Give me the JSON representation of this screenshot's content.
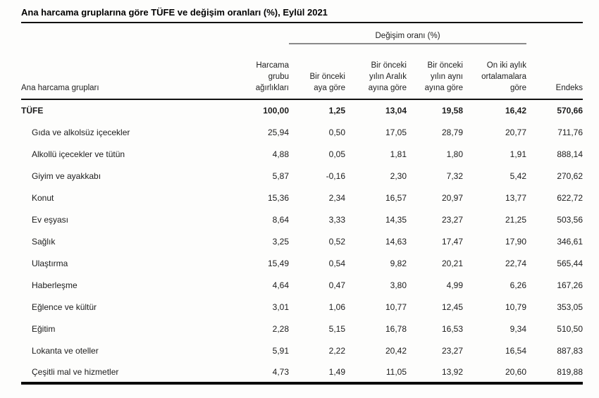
{
  "title": "Ana harcama gruplarına göre TÜFE ve değişim oranları (%), Eylül 2021",
  "table": {
    "span_header": "Değişim oranı (%)",
    "columns": {
      "group": "Ana harcama grupları",
      "weights": "Harcama\ngrubu\nağırlıkları",
      "prev_month": "Bir önceki\naya göre",
      "prev_december": "Bir önceki\nyılın Aralık\nayına göre",
      "prev_year_same_month": "Bir önceki\nyılın aynı\nayına göre",
      "twelve_month_avg": "On iki aylık\nortalamalara\ngöre",
      "index": "Endeks"
    },
    "rows": [
      {
        "label": "TÜFE",
        "values": [
          "100,00",
          "1,25",
          "13,04",
          "19,58",
          "16,42",
          "570,66"
        ]
      },
      {
        "label": "Gıda ve alkolsüz içecekler",
        "values": [
          "25,94",
          "0,50",
          "17,05",
          "28,79",
          "20,77",
          "711,76"
        ]
      },
      {
        "label": "Alkollü içecekler ve tütün",
        "values": [
          "4,88",
          "0,05",
          "1,81",
          "1,80",
          "1,91",
          "888,14"
        ]
      },
      {
        "label": "Giyim ve ayakkabı",
        "values": [
          "5,87",
          "-0,16",
          "2,30",
          "7,32",
          "5,42",
          "270,62"
        ]
      },
      {
        "label": "Konut",
        "values": [
          "15,36",
          "2,34",
          "16,57",
          "20,97",
          "13,77",
          "622,72"
        ]
      },
      {
        "label": "Ev eşyası",
        "values": [
          "8,64",
          "3,33",
          "14,35",
          "23,27",
          "21,25",
          "503,56"
        ]
      },
      {
        "label": "Sağlık",
        "values": [
          "3,25",
          "0,52",
          "14,63",
          "17,47",
          "17,90",
          "346,61"
        ]
      },
      {
        "label": "Ulaştırma",
        "values": [
          "15,49",
          "0,54",
          "9,82",
          "20,21",
          "22,74",
          "565,44"
        ]
      },
      {
        "label": "Haberleşme",
        "values": [
          "4,64",
          "0,47",
          "3,80",
          "4,99",
          "6,26",
          "167,26"
        ]
      },
      {
        "label": "Eğlence ve kültür",
        "values": [
          "3,01",
          "1,06",
          "10,77",
          "12,45",
          "10,79",
          "353,05"
        ]
      },
      {
        "label": "Eğitim",
        "values": [
          "2,28",
          "5,15",
          "16,78",
          "16,53",
          "9,34",
          "510,50"
        ]
      },
      {
        "label": "Lokanta ve oteller",
        "values": [
          "5,91",
          "2,22",
          "20,42",
          "23,27",
          "16,54",
          "887,83"
        ]
      },
      {
        "label": "Çeşitli mal ve hizmetler",
        "values": [
          "4,73",
          "1,49",
          "11,05",
          "13,92",
          "20,60",
          "819,88"
        ]
      }
    ],
    "colors": {
      "rule_black": "#111111",
      "rule_gray": "#8a8a8a",
      "text": "#1c1c1c"
    }
  }
}
